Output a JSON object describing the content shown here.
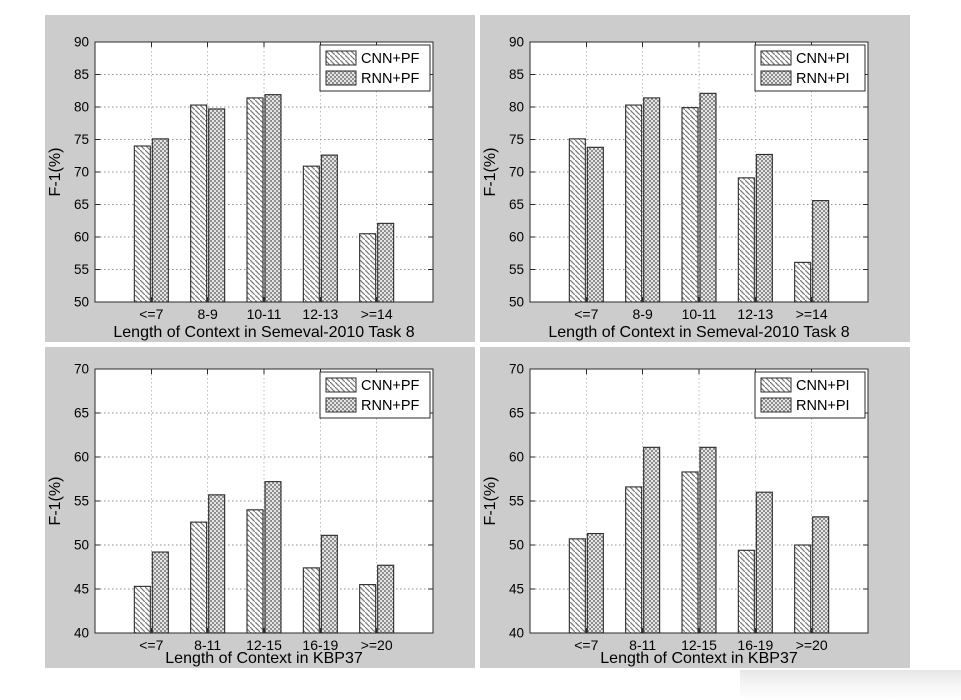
{
  "colors": {
    "figure_bg": "#cccccc",
    "plot_bg": "#ffffff",
    "axis": "#2b2b2b",
    "grid_h": "#8f8f8f",
    "grid_v": "#bcbcbc",
    "hatch": "#7d7d7d",
    "bar_edge": "#2b2b2b",
    "text": "#000000"
  },
  "chart_data": [
    {
      "id": "semeval-pf",
      "position": "top-left",
      "type": "bar",
      "xlabel": "Length of Context in Semeval-2010 Task 8",
      "ylabel": "F-1(%)",
      "ylim": [
        50,
        90
      ],
      "ytick_step": 5,
      "grid": true,
      "legend_position": "top-right",
      "categories": [
        "<=7",
        "8-9",
        "10-11",
        "12-13",
        ">=14"
      ],
      "series": [
        {
          "name": "CNN+PF",
          "hatch": "diagonal",
          "values": [
            74.0,
            80.3,
            81.4,
            70.9,
            60.5
          ]
        },
        {
          "name": "RNN+PF",
          "hatch": "cross",
          "values": [
            75.1,
            79.7,
            81.9,
            72.6,
            62.1
          ]
        }
      ]
    },
    {
      "id": "semeval-pi",
      "position": "top-right",
      "type": "bar",
      "xlabel": "Length of Context in Semeval-2010 Task 8",
      "ylabel": "F-1(%)",
      "ylim": [
        50,
        90
      ],
      "ytick_step": 5,
      "grid": true,
      "legend_position": "top-right",
      "categories": [
        "<=7",
        "8-9",
        "10-11",
        "12-13",
        ">=14"
      ],
      "series": [
        {
          "name": "CNN+PI",
          "hatch": "diagonal",
          "values": [
            75.1,
            80.3,
            79.9,
            69.1,
            56.1
          ]
        },
        {
          "name": "RNN+PI",
          "hatch": "cross",
          "values": [
            73.8,
            81.4,
            82.1,
            72.7,
            65.6
          ]
        }
      ]
    },
    {
      "id": "kbp37-pf",
      "position": "bottom-left",
      "type": "bar",
      "xlabel": "Length of Context in KBP37",
      "ylabel": "F-1(%)",
      "ylim": [
        40,
        70
      ],
      "ytick_step": 5,
      "grid": true,
      "legend_position": "top-right",
      "categories": [
        "<=7",
        "8-11",
        "12-15",
        "16-19",
        ">=20"
      ],
      "series": [
        {
          "name": "CNN+PF",
          "hatch": "diagonal",
          "values": [
            45.3,
            52.6,
            54.0,
            47.4,
            45.5
          ]
        },
        {
          "name": "RNN+PF",
          "hatch": "cross",
          "values": [
            49.2,
            55.7,
            57.2,
            51.1,
            47.7
          ]
        }
      ]
    },
    {
      "id": "kbp37-pi",
      "position": "bottom-right",
      "type": "bar",
      "xlabel": "Length of Context in KBP37",
      "ylabel": "F-1(%)",
      "ylim": [
        40,
        70
      ],
      "ytick_step": 5,
      "grid": true,
      "legend_position": "top-right",
      "categories": [
        "<=7",
        "8-11",
        "12-15",
        "16-19",
        ">=20"
      ],
      "series": [
        {
          "name": "CNN+PI",
          "hatch": "diagonal",
          "values": [
            50.7,
            56.6,
            58.3,
            49.4,
            50.0
          ]
        },
        {
          "name": "RNN+PI",
          "hatch": "cross",
          "values": [
            51.3,
            61.1,
            61.1,
            56.0,
            53.2
          ]
        }
      ]
    }
  ]
}
